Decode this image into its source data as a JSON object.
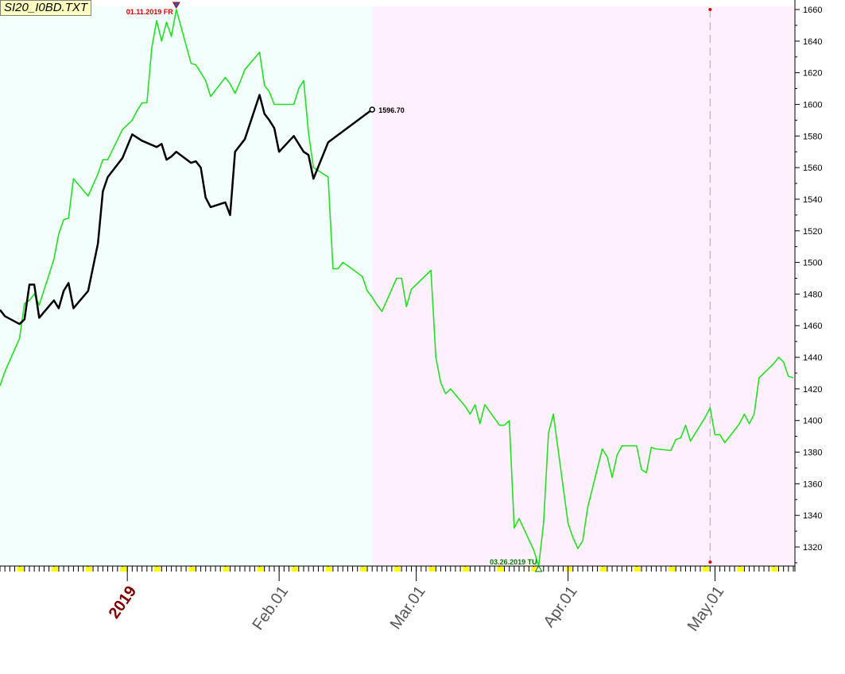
{
  "window": {
    "file_label": "SI20_I0BD.TXT"
  },
  "colors": {
    "past_bg": "#f3fffd",
    "future_bg": "#fff0fd",
    "green_line": "#22e022",
    "black_line": "#000000",
    "high_label": "#dd0000",
    "low_label": "#007700",
    "tick_yellow": "#ffff00"
  },
  "chart_data": {
    "type": "line",
    "title": "",
    "xlabel": "",
    "ylabel": "",
    "ylim": [
      1308,
      1662
    ],
    "yticks": [
      "1660",
      "1640",
      "1620",
      "1600",
      "1580",
      "1560",
      "1540",
      "1520",
      "1500",
      "1480",
      "1460",
      "1440",
      "1420",
      "1400",
      "1380",
      "1360",
      "1340",
      "1320"
    ],
    "xticks": [
      {
        "label": "2019",
        "date": "2019-01-01",
        "year": true
      },
      {
        "label": "Feb.01",
        "date": "2019-02-01"
      },
      {
        "label": "Mar.01",
        "date": "2019-03-01"
      },
      {
        "label": "Apr.01",
        "date": "2019-04-01"
      },
      {
        "label": "May.01",
        "date": "2019-05-01"
      }
    ],
    "divider_date": "2019-02-20",
    "marker_date": "2019-04-30",
    "annotations": {
      "high": {
        "label": "01.11.2019 FR",
        "date": "2019-01-11",
        "value": 1660
      },
      "low": {
        "label": "03.26.2019 TU",
        "date": "2019-03-26",
        "value": 1308
      },
      "last": {
        "label": "1596.70",
        "date": "2019-02-20",
        "value": 1596.7
      }
    },
    "series": [
      {
        "color": "#22e022",
        "points": [
          [
            "2018-12-06",
            1422
          ],
          [
            "2018-12-07",
            1431
          ],
          [
            "2018-12-10",
            1452
          ],
          [
            "2018-12-11",
            1474
          ],
          [
            "2018-12-12",
            1476
          ],
          [
            "2018-12-13",
            1480
          ],
          [
            "2018-12-14",
            1473
          ],
          [
            "2018-12-17",
            1502
          ],
          [
            "2018-12-18",
            1518
          ],
          [
            "2018-12-19",
            1527
          ],
          [
            "2018-12-20",
            1528
          ],
          [
            "2018-12-21",
            1553
          ],
          [
            "2018-12-24",
            1542
          ],
          [
            "2018-12-26",
            1556
          ],
          [
            "2018-12-27",
            1565
          ],
          [
            "2018-12-28",
            1565
          ],
          [
            "2018-12-31",
            1584
          ],
          [
            "2019-01-02",
            1590
          ],
          [
            "2019-01-03",
            1596
          ],
          [
            "2019-01-04",
            1601
          ],
          [
            "2019-01-05",
            1601
          ],
          [
            "2019-01-06",
            1636
          ],
          [
            "2019-01-07",
            1653
          ],
          [
            "2019-01-08",
            1640
          ],
          [
            "2019-01-09",
            1652
          ],
          [
            "2019-01-10",
            1643
          ],
          [
            "2019-01-11",
            1660
          ],
          [
            "2019-01-14",
            1626
          ],
          [
            "2019-01-15",
            1625
          ],
          [
            "2019-01-16",
            1620
          ],
          [
            "2019-01-17",
            1615
          ],
          [
            "2019-01-18",
            1605
          ],
          [
            "2019-01-21",
            1617
          ],
          [
            "2019-01-22",
            1613
          ],
          [
            "2019-01-23",
            1607
          ],
          [
            "2019-01-24",
            1614
          ],
          [
            "2019-01-25",
            1622
          ],
          [
            "2019-01-28",
            1633
          ],
          [
            "2019-01-29",
            1612
          ],
          [
            "2019-01-30",
            1608
          ],
          [
            "2019-01-31",
            1600
          ],
          [
            "2019-02-01",
            1600
          ],
          [
            "2019-02-04",
            1600
          ],
          [
            "2019-02-05",
            1610
          ],
          [
            "2019-02-06",
            1615
          ],
          [
            "2019-02-07",
            1582
          ],
          [
            "2019-02-08",
            1560
          ],
          [
            "2019-02-11",
            1554
          ],
          [
            "2019-02-12",
            1496
          ],
          [
            "2019-02-13",
            1496
          ],
          [
            "2019-02-14",
            1500
          ],
          [
            "2019-02-15",
            1498
          ],
          [
            "2019-02-18",
            1491
          ],
          [
            "2019-02-19",
            1482
          ],
          [
            "2019-02-20",
            1478
          ],
          [
            "2019-02-21",
            1473
          ],
          [
            "2019-02-22",
            1469
          ],
          [
            "2019-02-25",
            1490
          ],
          [
            "2019-02-26",
            1490
          ],
          [
            "2019-02-27",
            1472
          ],
          [
            "2019-02-28",
            1483
          ],
          [
            "2019-03-01",
            1486
          ],
          [
            "2019-03-04",
            1495
          ],
          [
            "2019-03-05",
            1440
          ],
          [
            "2019-03-06",
            1424
          ],
          [
            "2019-03-07",
            1417
          ],
          [
            "2019-03-08",
            1420
          ],
          [
            "2019-03-11",
            1409
          ],
          [
            "2019-03-12",
            1404
          ],
          [
            "2019-03-13",
            1410
          ],
          [
            "2019-03-14",
            1398
          ],
          [
            "2019-03-15",
            1410
          ],
          [
            "2019-03-18",
            1397
          ],
          [
            "2019-03-19",
            1397
          ],
          [
            "2019-03-20",
            1400
          ],
          [
            "2019-03-21",
            1332
          ],
          [
            "2019-03-22",
            1338
          ],
          [
            "2019-03-25",
            1318
          ],
          [
            "2019-03-26",
            1308
          ],
          [
            "2019-03-27",
            1335
          ],
          [
            "2019-03-28",
            1392
          ],
          [
            "2019-03-29",
            1404
          ],
          [
            "2019-04-01",
            1335
          ],
          [
            "2019-04-02",
            1326
          ],
          [
            "2019-04-03",
            1319
          ],
          [
            "2019-04-04",
            1324
          ],
          [
            "2019-04-05",
            1345
          ],
          [
            "2019-04-08",
            1382
          ],
          [
            "2019-04-09",
            1377
          ],
          [
            "2019-04-10",
            1364
          ],
          [
            "2019-04-11",
            1378
          ],
          [
            "2019-04-12",
            1384
          ],
          [
            "2019-04-15",
            1384
          ],
          [
            "2019-04-16",
            1369
          ],
          [
            "2019-04-17",
            1367
          ],
          [
            "2019-04-18",
            1383
          ],
          [
            "2019-04-19",
            1382
          ],
          [
            "2019-04-22",
            1381
          ],
          [
            "2019-04-23",
            1388
          ],
          [
            "2019-04-24",
            1389
          ],
          [
            "2019-04-25",
            1397
          ],
          [
            "2019-04-26",
            1387
          ],
          [
            "2019-04-29",
            1402
          ],
          [
            "2019-04-30",
            1408
          ],
          [
            "2019-05-01",
            1391
          ],
          [
            "2019-05-02",
            1391
          ],
          [
            "2019-05-03",
            1386
          ],
          [
            "2019-05-06",
            1398
          ],
          [
            "2019-05-07",
            1404
          ],
          [
            "2019-05-08",
            1398
          ],
          [
            "2019-05-09",
            1404
          ],
          [
            "2019-05-10",
            1427
          ],
          [
            "2019-05-13",
            1436
          ],
          [
            "2019-05-14",
            1440
          ],
          [
            "2019-05-15",
            1437
          ],
          [
            "2019-05-16",
            1428
          ],
          [
            "2019-05-17",
            1427
          ]
        ]
      },
      {
        "color": "#000000",
        "points": [
          [
            "2018-12-06",
            1470
          ],
          [
            "2018-12-07",
            1466
          ],
          [
            "2018-12-10",
            1461
          ],
          [
            "2018-12-11",
            1464
          ],
          [
            "2018-12-12",
            1486
          ],
          [
            "2018-12-13",
            1486
          ],
          [
            "2018-12-14",
            1465
          ],
          [
            "2018-12-17",
            1476
          ],
          [
            "2018-12-18",
            1471
          ],
          [
            "2018-12-19",
            1482
          ],
          [
            "2018-12-20",
            1487
          ],
          [
            "2018-12-21",
            1471
          ],
          [
            "2018-12-24",
            1482
          ],
          [
            "2018-12-26",
            1512
          ],
          [
            "2018-12-27",
            1545
          ],
          [
            "2018-12-28",
            1554
          ],
          [
            "2018-12-31",
            1566
          ],
          [
            "2019-01-02",
            1581
          ],
          [
            "2019-01-03",
            1579
          ],
          [
            "2019-01-04",
            1577
          ],
          [
            "2019-01-07",
            1573
          ],
          [
            "2019-01-08",
            1575
          ],
          [
            "2019-01-09",
            1565
          ],
          [
            "2019-01-10",
            1567
          ],
          [
            "2019-01-11",
            1570
          ],
          [
            "2019-01-14",
            1563
          ],
          [
            "2019-01-15",
            1564
          ],
          [
            "2019-01-16",
            1560
          ],
          [
            "2019-01-17",
            1541
          ],
          [
            "2019-01-18",
            1535
          ],
          [
            "2019-01-21",
            1538
          ],
          [
            "2019-01-22",
            1530
          ],
          [
            "2019-01-23",
            1570
          ],
          [
            "2019-01-24",
            1574
          ],
          [
            "2019-01-25",
            1578
          ],
          [
            "2019-01-28",
            1606
          ],
          [
            "2019-01-29",
            1594
          ],
          [
            "2019-01-30",
            1590
          ],
          [
            "2019-01-31",
            1585
          ],
          [
            "2019-02-01",
            1570
          ],
          [
            "2019-02-04",
            1580
          ],
          [
            "2019-02-05",
            1575
          ],
          [
            "2019-02-06",
            1570
          ],
          [
            "2019-02-07",
            1568
          ],
          [
            "2019-02-08",
            1553
          ],
          [
            "2019-02-11",
            1576
          ],
          [
            "2019-02-20",
            1596.7
          ]
        ]
      }
    ]
  }
}
